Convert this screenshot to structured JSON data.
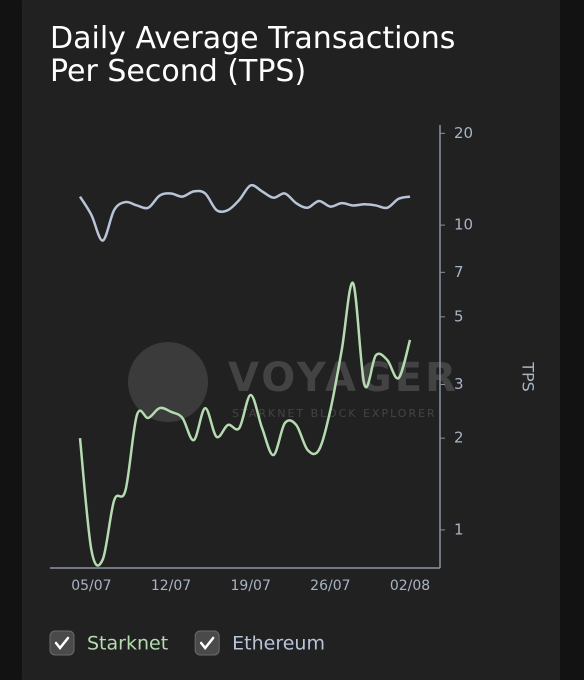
{
  "chart_data": {
    "type": "line",
    "title": "Daily Average Transactions Per Second (TPS)",
    "y_label": "TPS",
    "watermark": "VOYAGER",
    "watermark_subtitle": "STARKNET BLOCK EXPLORER",
    "log_scale": true,
    "categories": [
      null,
      "05/07",
      null,
      null,
      null,
      null,
      null,
      null,
      "12/07",
      null,
      null,
      null,
      null,
      null,
      null,
      "19/07",
      null,
      null,
      null,
      null,
      null,
      null,
      "26/07",
      null,
      null,
      null,
      null,
      null,
      null,
      "02/08"
    ],
    "ylim": [
      0.75,
      21.3
    ],
    "yticks": [
      1,
      2,
      3,
      5,
      7,
      10,
      20
    ],
    "series": [
      {
        "name": "Starknet",
        "color": "#b5dbb0",
        "values": [
          2.0,
          0.86,
          0.8,
          1.25,
          1.35,
          2.38,
          2.33,
          2.51,
          2.44,
          2.33,
          1.97,
          2.51,
          2.02,
          2.21,
          2.16,
          2.77,
          2.16,
          1.76,
          2.24,
          2.21,
          1.83,
          1.83,
          2.47,
          3.89,
          6.45,
          2.99,
          3.74,
          3.61,
          3.15,
          4.2
        ]
      },
      {
        "name": "Ethereum",
        "color": "#b8c4d8",
        "values": [
          12.4,
          10.8,
          8.9,
          11.2,
          11.9,
          11.6,
          11.4,
          12.5,
          12.7,
          12.4,
          12.9,
          12.7,
          11.2,
          11.2,
          12.1,
          13.5,
          12.9,
          12.3,
          12.7,
          11.8,
          11.4,
          12.0,
          11.5,
          11.8,
          11.6,
          11.7,
          11.6,
          11.4,
          12.2,
          12.4
        ]
      }
    ]
  }
}
